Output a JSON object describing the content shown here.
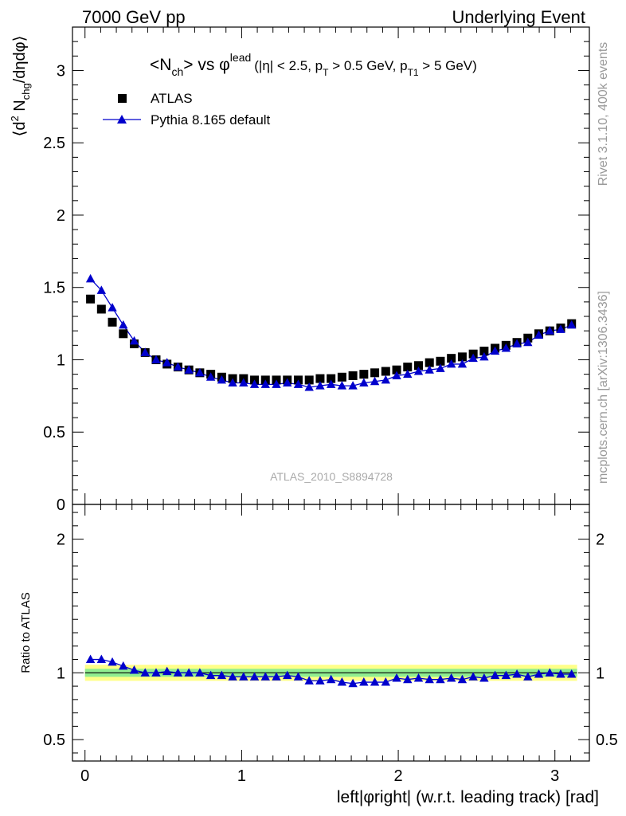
{
  "header": {
    "left": "7000 GeV pp",
    "right": "Underlying Event"
  },
  "side_labels": {
    "rivet": "Rivet 3.1.10,  400k events",
    "mcplots": "mcplots.cern.ch [arXiv:1306.3436]"
  },
  "plot_title": {
    "main": "<N",
    "ch_sub": "ch",
    "vs": "> vs φ",
    "lead_sup": "lead",
    "cuts_a": "(|η| < 2.5, p",
    "t_sub": "T",
    "cuts_b": " > 0.5 GeV, p",
    "t1_sub": "T1",
    "cuts_c": " > 5 GeV)"
  },
  "analysis_id": "ATLAS_2010_S8894728",
  "colors": {
    "data": "#000000",
    "mc": "#0000cc",
    "band_inner": "#90ee90",
    "band_outer": "#ffff88",
    "ratio_line": "#008800"
  },
  "chart_data": [
    {
      "type": "scatter",
      "panel": "main",
      "ylabel": "⟨d² N_chg/dηdφ⟩",
      "ylim": [
        0,
        3.3
      ],
      "xlim": [
        -0.08,
        3.22
      ],
      "yticks": [
        0,
        0.5,
        1,
        1.5,
        2,
        2.5,
        3
      ],
      "ytick_labels": [
        "0",
        "0.5",
        "1",
        "1.5",
        "2",
        "2.5",
        "3"
      ],
      "legend_position": "top-left",
      "legend": [
        "ATLAS",
        "Pythia 8.165 default"
      ],
      "x": [
        0.0349,
        0.1047,
        0.1745,
        0.2443,
        0.3142,
        0.384,
        0.4538,
        0.5236,
        0.5934,
        0.6632,
        0.733,
        0.8029,
        0.8727,
        0.9425,
        1.0123,
        1.0821,
        1.1519,
        1.2217,
        1.2915,
        1.3614,
        1.4312,
        1.501,
        1.5708,
        1.6406,
        1.7104,
        1.7802,
        1.85,
        1.9199,
        1.9897,
        2.0595,
        2.1293,
        2.1991,
        2.2689,
        2.3387,
        2.4086,
        2.4784,
        2.5482,
        2.618,
        2.6878,
        2.7576,
        2.8274,
        2.8972,
        2.9671,
        3.0369,
        3.1067
      ],
      "series": [
        {
          "name": "ATLAS",
          "marker": "square",
          "values": [
            1.42,
            1.35,
            1.26,
            1.18,
            1.11,
            1.05,
            1.0,
            0.97,
            0.95,
            0.93,
            0.91,
            0.9,
            0.88,
            0.87,
            0.87,
            0.86,
            0.86,
            0.86,
            0.86,
            0.86,
            0.86,
            0.87,
            0.87,
            0.88,
            0.89,
            0.9,
            0.91,
            0.92,
            0.93,
            0.95,
            0.96,
            0.98,
            0.99,
            1.01,
            1.02,
            1.04,
            1.06,
            1.08,
            1.1,
            1.12,
            1.15,
            1.18,
            1.2,
            1.22,
            1.25
          ]
        },
        {
          "name": "Pythia 8.165 default",
          "marker": "triangle",
          "values": [
            1.56,
            1.48,
            1.36,
            1.24,
            1.13,
            1.05,
            1.0,
            0.98,
            0.95,
            0.93,
            0.91,
            0.88,
            0.86,
            0.84,
            0.84,
            0.83,
            0.83,
            0.83,
            0.84,
            0.83,
            0.81,
            0.82,
            0.83,
            0.82,
            0.82,
            0.84,
            0.85,
            0.86,
            0.89,
            0.9,
            0.92,
            0.93,
            0.94,
            0.97,
            0.97,
            1.01,
            1.02,
            1.06,
            1.08,
            1.11,
            1.12,
            1.17,
            1.2,
            1.21,
            1.24
          ]
        }
      ]
    },
    {
      "type": "scatter",
      "panel": "ratio",
      "ylabel": "Ratio to ATLAS",
      "xlabel": "left|φright| (w.r.t. leading track) [rad]",
      "ylim": [
        0.34,
        2.26
      ],
      "xlim": [
        -0.08,
        3.22
      ],
      "yticks": [
        0.5,
        1,
        2
      ],
      "ytick_labels": [
        "0.5",
        "1",
        "2"
      ],
      "xticks": [
        0,
        1,
        2,
        3
      ],
      "xtick_labels": [
        "0",
        "1",
        "2",
        "3"
      ],
      "band_inner_halfwidth": 0.03,
      "band_outer_halfwidth": 0.06,
      "series": [
        {
          "name": "Pythia 8.165 default / ATLAS",
          "marker": "triangle",
          "values": [
            1.1,
            1.1,
            1.08,
            1.05,
            1.02,
            1.0,
            1.0,
            1.01,
            1.0,
            1.0,
            1.0,
            0.98,
            0.98,
            0.97,
            0.97,
            0.97,
            0.97,
            0.97,
            0.98,
            0.97,
            0.94,
            0.94,
            0.95,
            0.93,
            0.92,
            0.93,
            0.93,
            0.93,
            0.96,
            0.95,
            0.96,
            0.95,
            0.95,
            0.96,
            0.95,
            0.97,
            0.96,
            0.98,
            0.98,
            0.99,
            0.97,
            0.99,
            1.0,
            0.99,
            0.99
          ]
        }
      ]
    }
  ]
}
